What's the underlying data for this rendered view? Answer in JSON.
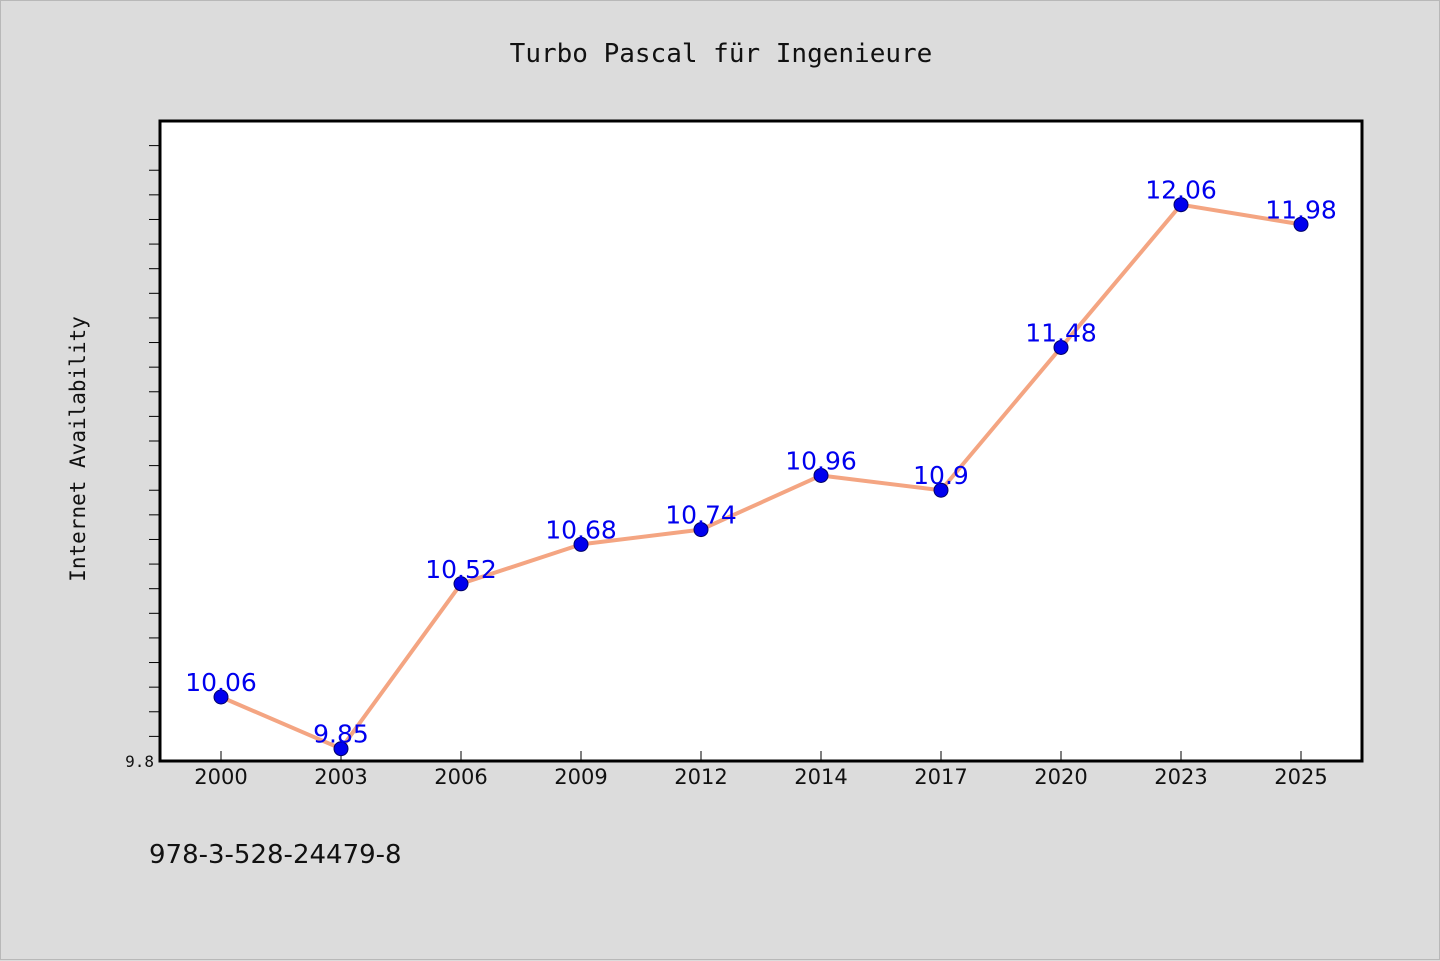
{
  "chart_data": {
    "type": "line",
    "title": "Turbo Pascal für Ingenieure",
    "xlabel": "",
    "ylabel": "Internet Availability",
    "categories": [
      "2000",
      "2003",
      "2006",
      "2009",
      "2012",
      "2014",
      "2017",
      "2020",
      "2023",
      "2025"
    ],
    "series": [
      {
        "values": [
          10.06,
          9.85,
          10.52,
          10.68,
          10.74,
          10.96,
          10.9,
          11.48,
          12.06,
          11.98
        ],
        "labels": [
          "10.06",
          "9.85",
          "10.52",
          "10.68",
          "10.74",
          "10.96",
          "10.9",
          "11.48",
          "12.06",
          "11.98"
        ],
        "line_color": "#f4a582",
        "marker_color": "#0000ee"
      }
    ],
    "yticks": [
      {
        "value": 9.8,
        "label": "9.8"
      }
    ],
    "ylim": [
      9.8,
      12.4
    ],
    "grid": false,
    "legend": "none",
    "footnote": "978-3-528-24479-8"
  },
  "colors": {
    "background": "#dcdcdc",
    "plot_background": "#ffffff",
    "line": "#f4a582",
    "marker": "#0000ee",
    "label": "#0000ee"
  }
}
